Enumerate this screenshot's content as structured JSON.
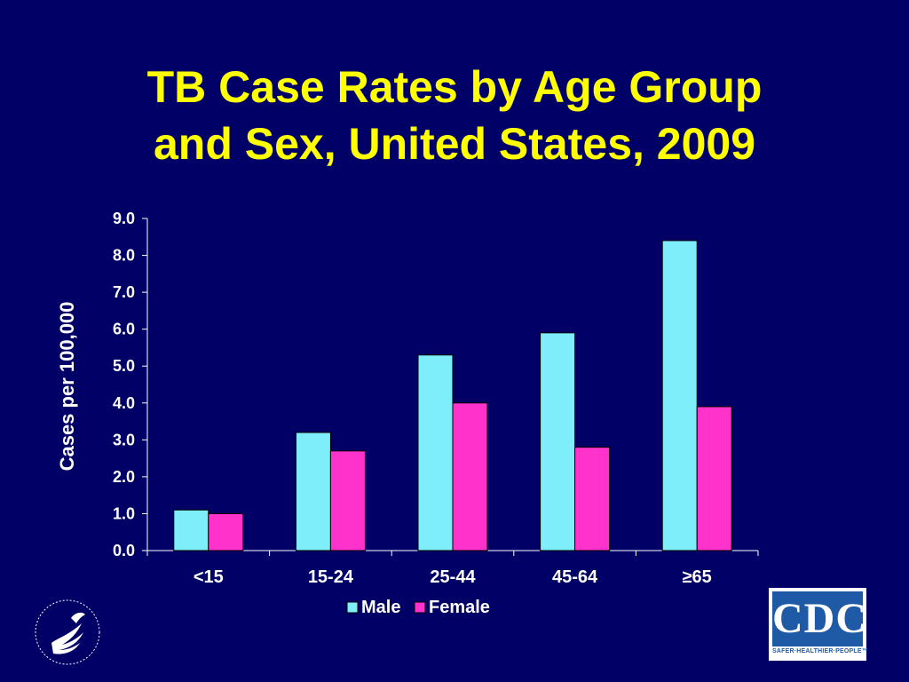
{
  "slide": {
    "title_line1": "TB Case Rates by Age Group",
    "title_line2": "and Sex, United States, 2009",
    "background_color": "#000066",
    "title_color": "#ffff00"
  },
  "chart_data": {
    "type": "bar",
    "categories": [
      "<15",
      "15-24",
      "25-44",
      "45-64",
      "≥65"
    ],
    "series": [
      {
        "name": "Male",
        "color": "#7eeefa",
        "values": [
          1.1,
          3.2,
          5.3,
          5.9,
          8.4
        ]
      },
      {
        "name": "Female",
        "color": "#ff33cc",
        "values": [
          1.0,
          2.7,
          4.0,
          2.8,
          3.9
        ]
      }
    ],
    "ylabel": "Cases per 100,000",
    "xlabel": "",
    "ylim": [
      0,
      9
    ],
    "yticks": [
      "0.0",
      "1.0",
      "2.0",
      "3.0",
      "4.0",
      "5.0",
      "6.0",
      "7.0",
      "8.0",
      "9.0"
    ],
    "grid": false,
    "legend_position": "bottom",
    "text_color": "#ffffff"
  },
  "logos": {
    "left": "hhs-seal",
    "right": {
      "name": "cdc-logo",
      "letters": "CDC",
      "tagline": "SAFER·HEALTHIER·PEOPLE™",
      "color": "#1f5aa6"
    }
  }
}
